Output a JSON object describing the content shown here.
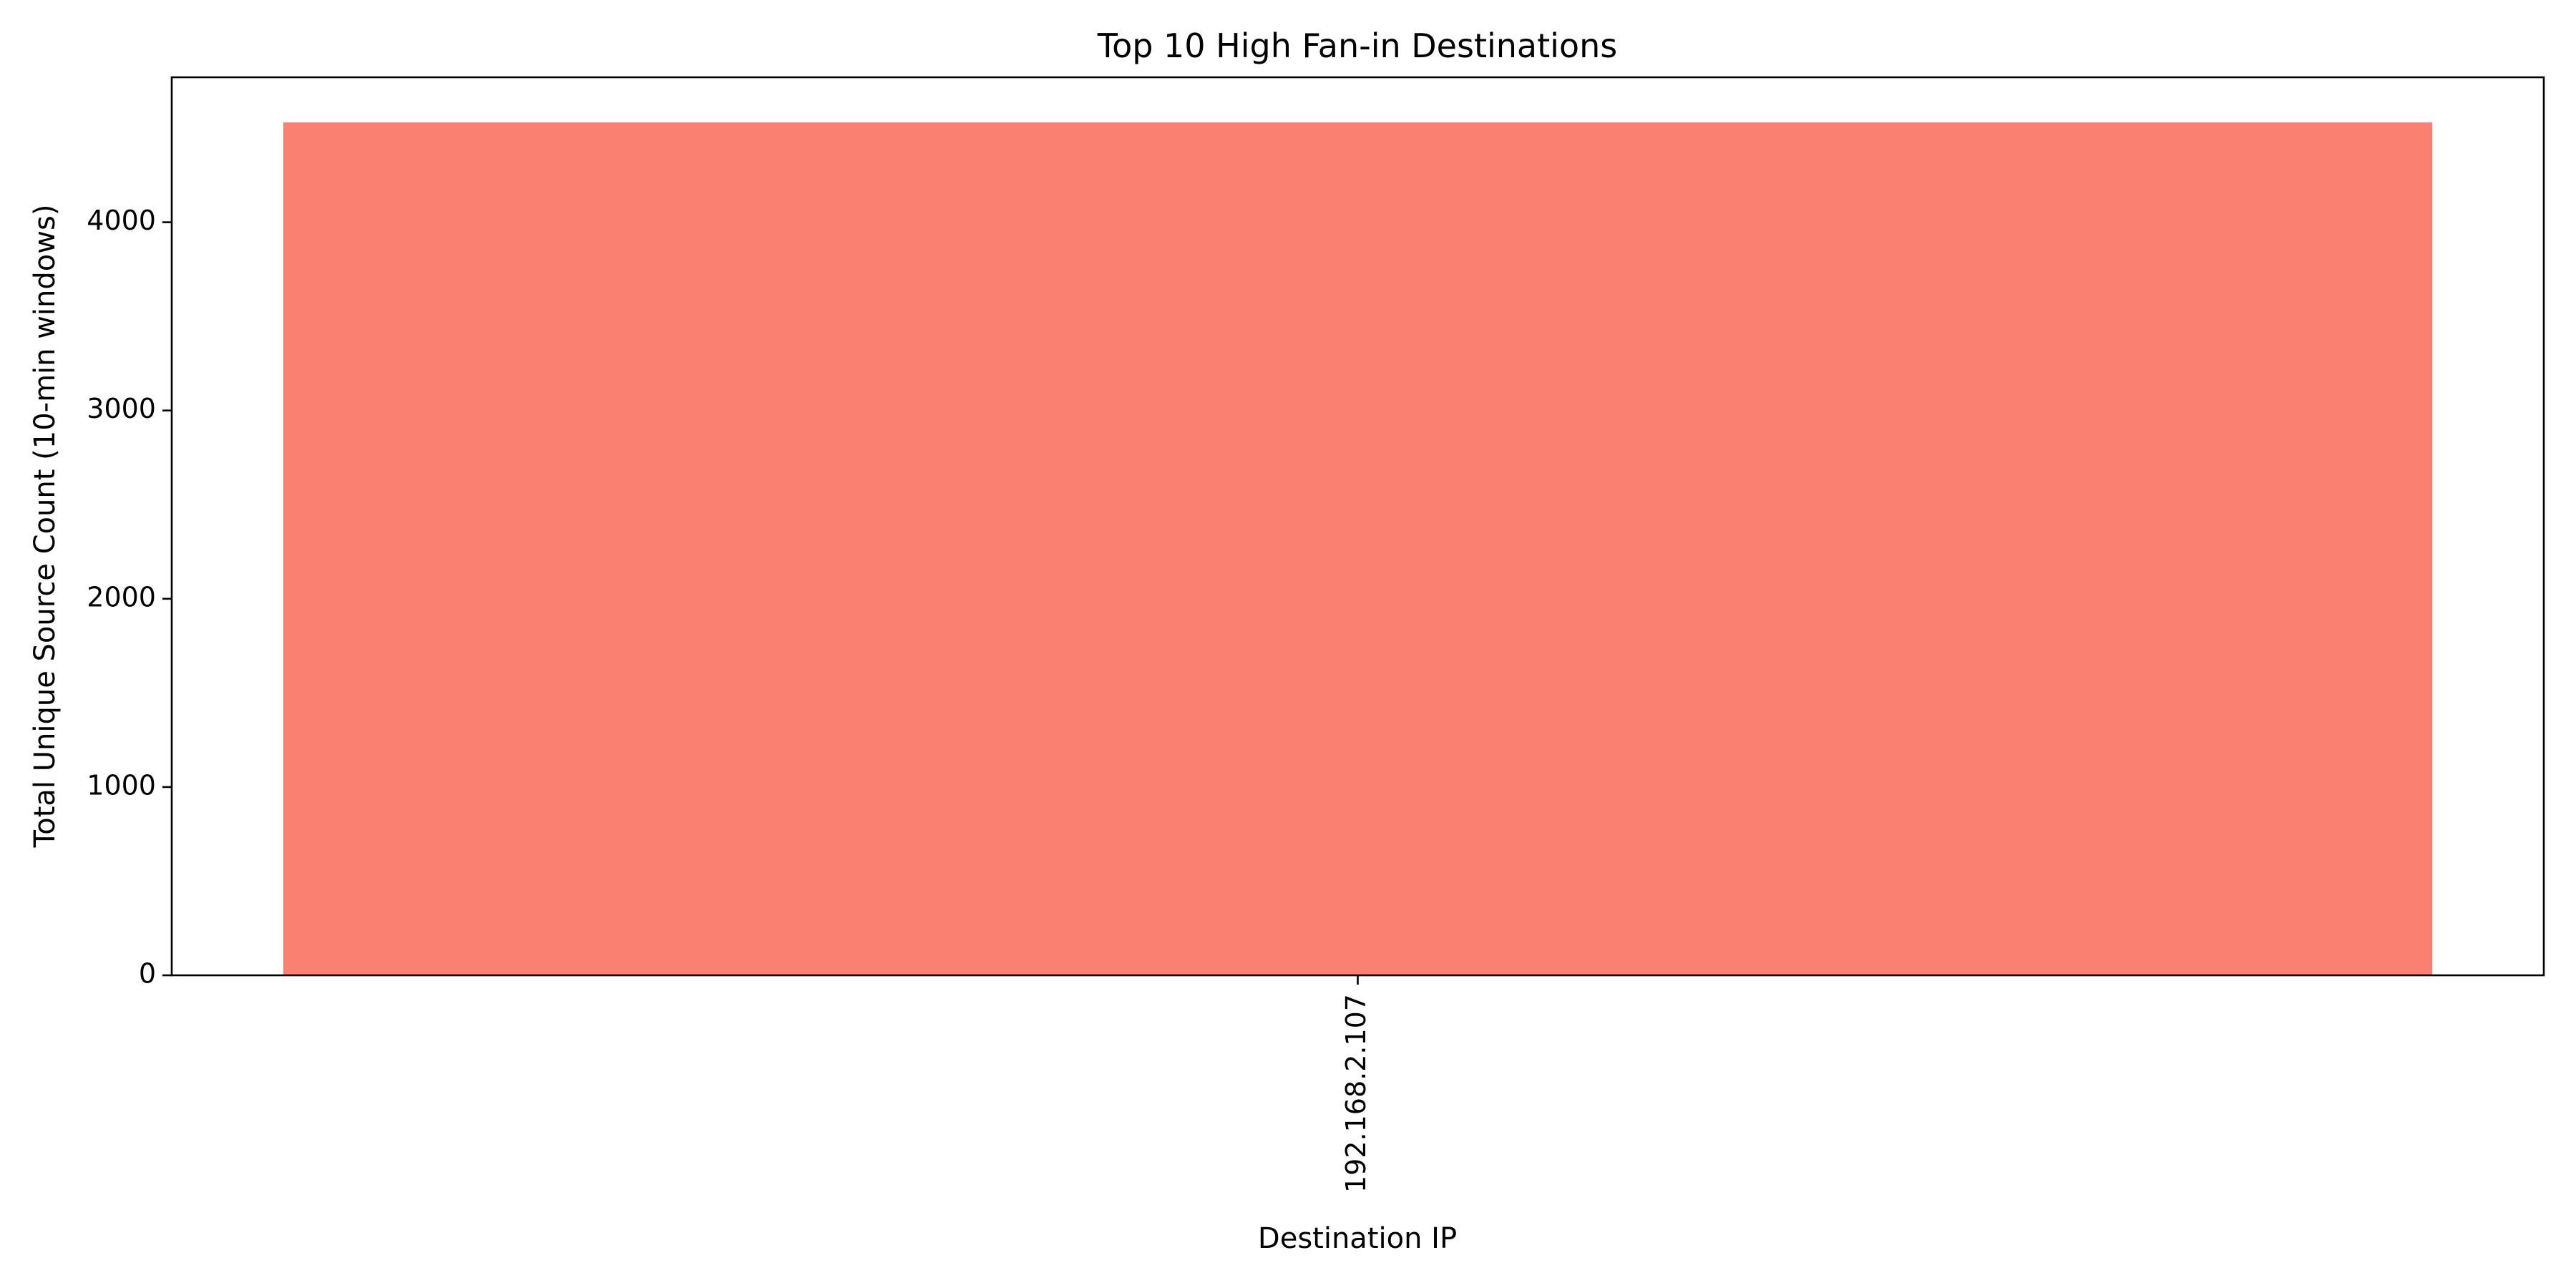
{
  "chart_data": {
    "type": "bar",
    "title": "Top 10 High Fan-in Destinations",
    "xlabel": "Destination IP",
    "ylabel": "Total Unique Source Count (10-min windows)",
    "categories": [
      "192.168.2.107"
    ],
    "values": [
      4530
    ],
    "ylim": [
      0,
      4770
    ],
    "yticks": [
      0,
      1000,
      2000,
      3000,
      4000
    ],
    "grid": false,
    "legend": "none",
    "bar_color": "#fa8072",
    "x_tick_rotation": "vertical"
  }
}
